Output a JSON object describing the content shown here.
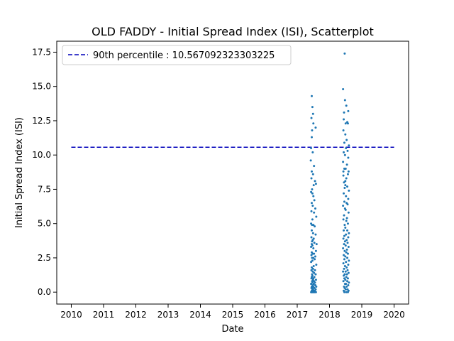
{
  "chart_data": {
    "type": "scatter",
    "title": "OLD FADDY - Initial Spread Index (ISI), Scatterplot",
    "xlabel": "Date",
    "ylabel": "Initial Spread Index (ISI)",
    "xlim": [
      2009.55,
      2020.45
    ],
    "ylim": [
      -0.87,
      18.3
    ],
    "x_ticks": [
      "2010",
      "2011",
      "2012",
      "2013",
      "2014",
      "2015",
      "2016",
      "2017",
      "2018",
      "2019",
      "2020"
    ],
    "y_ticks": [
      "0.0",
      "2.5",
      "5.0",
      "7.5",
      "10.0",
      "12.5",
      "15.0",
      "17.5"
    ],
    "grid": false,
    "legend_position": "top-left",
    "point_color": "#1f77b4",
    "reference_line": {
      "label": "90th percentile : 10.567092323303225",
      "value": 10.567092323303225,
      "x_range": [
        2010,
        2020
      ],
      "color": "#0000bb",
      "style": "dashed"
    },
    "series": [
      {
        "x": [
          2017.45,
          2017.47,
          2017.44,
          2017.5,
          2017.46,
          2017.43,
          2017.48,
          2017.42,
          2017.52,
          2017.45,
          2017.49,
          2017.44,
          2017.55,
          2017.58,
          2017.51,
          2017.46,
          2017.43,
          2017.47,
          2017.5,
          2017.53,
          2017.45,
          2017.48,
          2017.56,
          2017.44,
          2017.52,
          2017.59,
          2017.47,
          2017.43,
          2017.5,
          2017.46,
          2017.54,
          2017.45,
          2017.49,
          2017.57,
          2017.44,
          2017.51,
          2017.48,
          2017.46,
          2017.53,
          2017.45,
          2017.6,
          2017.47,
          2017.43,
          2017.5,
          2017.58,
          2017.45,
          2017.52,
          2017.48,
          2017.44,
          2017.56,
          2017.46,
          2017.5,
          2017.54,
          2017.47,
          2017.43,
          2017.59,
          2017.51,
          2017.45,
          2017.49,
          2017.55,
          2017.44,
          2017.48,
          2017.52,
          2017.46,
          2017.57,
          2017.47,
          2017.53,
          2017.45,
          2017.5,
          2017.44,
          2017.58,
          2017.49,
          2017.46,
          2017.52,
          2017.55,
          2017.47,
          2017.43,
          2017.51,
          2017.48,
          2017.56,
          2017.45,
          2017.5,
          2017.59,
          2017.46,
          2017.53,
          2017.44,
          2017.49,
          2017.57,
          2017.47,
          2017.52,
          2017.45,
          2017.54,
          2017.48,
          2017.43,
          2017.5,
          2017.58,
          2017.46,
          2017.51,
          2017.55,
          2017.44,
          2017.47,
          2017.53,
          2017.49,
          2017.45,
          2017.57
        ],
        "y": [
          14.3,
          13.5,
          12.7,
          12.3,
          11.8,
          10.5,
          10.2,
          9.6,
          9.2,
          8.8,
          8.6,
          8.3,
          8.1,
          7.9,
          7.8,
          7.5,
          7.3,
          7.2,
          7.0,
          6.7,
          6.5,
          6.3,
          6.1,
          5.9,
          5.8,
          5.5,
          5.3,
          5.0,
          4.9,
          4.9,
          4.8,
          4.5,
          4.3,
          4.2,
          4.0,
          3.9,
          3.8,
          3.7,
          3.6,
          3.5,
          3.5,
          3.4,
          3.3,
          3.2,
          3.0,
          2.9,
          2.8,
          2.8,
          2.7,
          2.6,
          2.5,
          2.5,
          2.4,
          2.3,
          2.2,
          2.0,
          1.9,
          1.8,
          1.7,
          1.6,
          1.6,
          1.5,
          1.4,
          1.3,
          1.3,
          1.2,
          1.1,
          1.1,
          1.0,
          1.0,
          0.9,
          0.9,
          0.8,
          0.8,
          0.7,
          0.7,
          0.6,
          0.6,
          0.5,
          0.5,
          0.4,
          0.4,
          0.4,
          0.3,
          0.3,
          0.3,
          0.2,
          0.2,
          0.2,
          0.1,
          0.1,
          0.1,
          0.1,
          0.0,
          0.0,
          0.0,
          0.0,
          0.0,
          0.0,
          0.0,
          0.0,
          0.0,
          13.0,
          11.3,
          12.0
        ]
      },
      {
        "x": [
          2018.47,
          2018.42,
          2018.48,
          2018.52,
          2018.45,
          2018.58,
          2018.44,
          2018.5,
          2018.55,
          2018.57,
          2018.43,
          2018.49,
          2018.53,
          2018.46,
          2018.6,
          2018.51,
          2018.44,
          2018.56,
          2018.48,
          2018.58,
          2018.42,
          2018.54,
          2018.5,
          2018.46,
          2018.59,
          2018.43,
          2018.52,
          2018.57,
          2018.45,
          2018.49,
          2018.55,
          2018.47,
          2018.6,
          2018.44,
          2018.51,
          2018.58,
          2018.46,
          2018.53,
          2018.42,
          2018.56,
          2018.48,
          2018.5,
          2018.59,
          2018.45,
          2018.54,
          2018.43,
          2018.52,
          2018.57,
          2018.47,
          2018.49,
          2018.55,
          2018.44,
          2018.6,
          2018.51,
          2018.46,
          2018.58,
          2018.43,
          2018.53,
          2018.48,
          2018.56,
          2018.45,
          2018.5,
          2018.59,
          2018.42,
          2018.54,
          2018.47,
          2018.52,
          2018.57,
          2018.44,
          2018.49,
          2018.55,
          2018.46,
          2018.6,
          2018.51,
          2018.43,
          2018.58,
          2018.48,
          2018.53,
          2018.45,
          2018.56,
          2018.5,
          2018.42,
          2018.59,
          2018.47,
          2018.54,
          2018.44,
          2018.52,
          2018.57,
          2018.46,
          2018.49,
          2018.55,
          2018.43,
          2018.6,
          2018.51,
          2018.48,
          2018.58,
          2018.45,
          2018.53,
          2018.47,
          2018.56,
          2018.5,
          2018.44,
          2018.59,
          2018.46,
          2018.52,
          2018.57,
          2018.43,
          2018.49
        ],
        "y": [
          17.4,
          14.8,
          14.0,
          13.6,
          13.1,
          13.2,
          12.6,
          12.3,
          12.4,
          12.3,
          11.8,
          11.5,
          11.1,
          10.9,
          10.7,
          10.5,
          10.2,
          10.3,
          10.0,
          9.8,
          9.5,
          9.3,
          9.0,
          9.0,
          8.8,
          8.5,
          8.3,
          8.6,
          8.0,
          7.8,
          7.7,
          7.6,
          7.4,
          7.2,
          7.0,
          6.8,
          6.6,
          6.5,
          6.3,
          6.4,
          6.1,
          6.0,
          5.8,
          5.6,
          5.4,
          5.3,
          5.2,
          5.0,
          4.9,
          4.7,
          4.5,
          4.5,
          4.3,
          4.2,
          4.1,
          4.0,
          3.9,
          3.8,
          3.7,
          3.6,
          3.5,
          3.4,
          3.3,
          3.2,
          3.1,
          3.0,
          2.9,
          2.8,
          2.7,
          2.6,
          2.5,
          2.4,
          2.3,
          2.2,
          2.1,
          2.0,
          1.9,
          1.8,
          1.7,
          1.6,
          1.5,
          1.5,
          1.4,
          1.3,
          1.3,
          1.2,
          1.1,
          1.0,
          1.0,
          0.9,
          0.8,
          0.8,
          0.7,
          0.6,
          0.6,
          0.5,
          0.4,
          0.4,
          0.3,
          0.2,
          0.2,
          0.1,
          0.1,
          0.0,
          0.0,
          0.0,
          8.8,
          8.1
        ]
      }
    ]
  }
}
